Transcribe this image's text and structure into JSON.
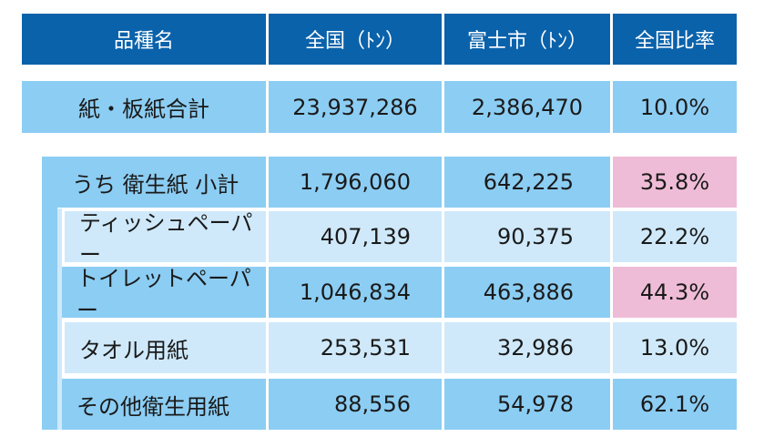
{
  "header": {
    "name": "品種名",
    "national": "全国（ﾄﾝ）",
    "fuji": "富士市（ﾄﾝ）",
    "ratio": "全国比率"
  },
  "total": {
    "name": "紙・板紙合計",
    "national": "23,937,286",
    "fuji": "2,386,470",
    "ratio": "10.0%"
  },
  "subtotal": {
    "name": "うち 衛生紙 小計",
    "national": "1,796,060",
    "fuji": "642,225",
    "ratio": "35.8%"
  },
  "rows": [
    {
      "name": "ティッシュペーパー",
      "national": "407,139",
      "fuji": "90,375",
      "ratio": "22.2%"
    },
    {
      "name": "トイレットペーパー",
      "national": "1,046,834",
      "fuji": "463,886",
      "ratio": "44.3%"
    },
    {
      "name": "タオル用紙",
      "national": "253,531",
      "fuji": "32,986",
      "ratio": "13.0%"
    },
    {
      "name": "その他衛生用紙",
      "national": "88,556",
      "fuji": "54,978",
      "ratio": "62.1%"
    }
  ],
  "colors": {
    "header_bg": "#0a62ab",
    "row_light_blue": "#8ccdf3",
    "row_pale_blue": "#cfe9fa",
    "highlight_pink": "#efbcd7"
  }
}
